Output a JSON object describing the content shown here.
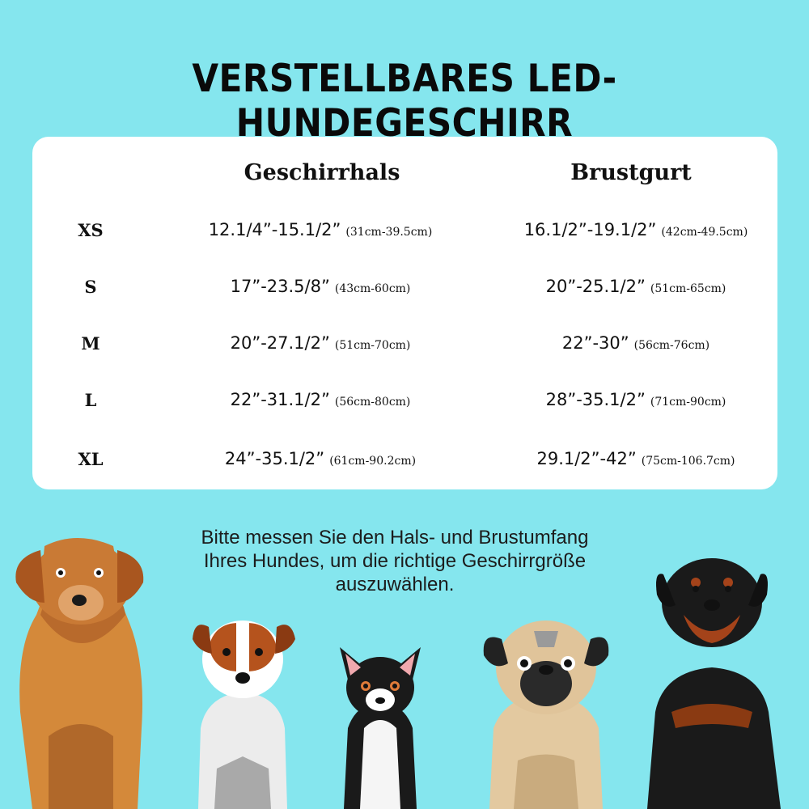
{
  "title": "VERSTELLBARES LED-HUNDEGESCHIRR",
  "table": {
    "headers": [
      "Geschirrhals",
      "Brustgurt"
    ],
    "rows": [
      {
        "size": "XS",
        "neck_in": "12.1/4”-15.1/2”",
        "neck_cm": "(31cm-39.5cm)",
        "chest_in": "16.1/2”-19.1/2”",
        "chest_cm": "(42cm-49.5cm)"
      },
      {
        "size": "S",
        "neck_in": "17”-23.5/8”",
        "neck_cm": "(43cm-60cm)",
        "chest_in": "20”-25.1/2”",
        "chest_cm": "(51cm-65cm)"
      },
      {
        "size": "M",
        "neck_in": "20”-27.1/2”",
        "neck_cm": "(51cm-70cm)",
        "chest_in": "22”-30”",
        "chest_cm": "(56cm-76cm)"
      },
      {
        "size": "L",
        "neck_in": "22”-31.1/2”",
        "neck_cm": "(56cm-80cm)",
        "chest_in": "28”-35.1/2”",
        "chest_cm": "(71cm-90cm)"
      },
      {
        "size": "XL",
        "neck_in": "24”-35.1/2”",
        "neck_cm": "(61cm-90.2cm)",
        "chest_in": "29.1/2”-42”",
        "chest_cm": "(75cm-106.7cm)"
      }
    ]
  },
  "note": {
    "line1": "Bitte messen Sie den Hals- und Brustumfang",
    "line2": "Ihres Hundes, um die richtige Geschirrgröße",
    "line3": "auszuwählen."
  },
  "colors": {
    "background": "#85e6ee",
    "card": "#ffffff",
    "text": "#111111"
  },
  "illustrations": [
    "golden-retriever-icon",
    "jack-russell-icon",
    "chihuahua-icon",
    "pug-icon",
    "rottweiler-icon"
  ]
}
